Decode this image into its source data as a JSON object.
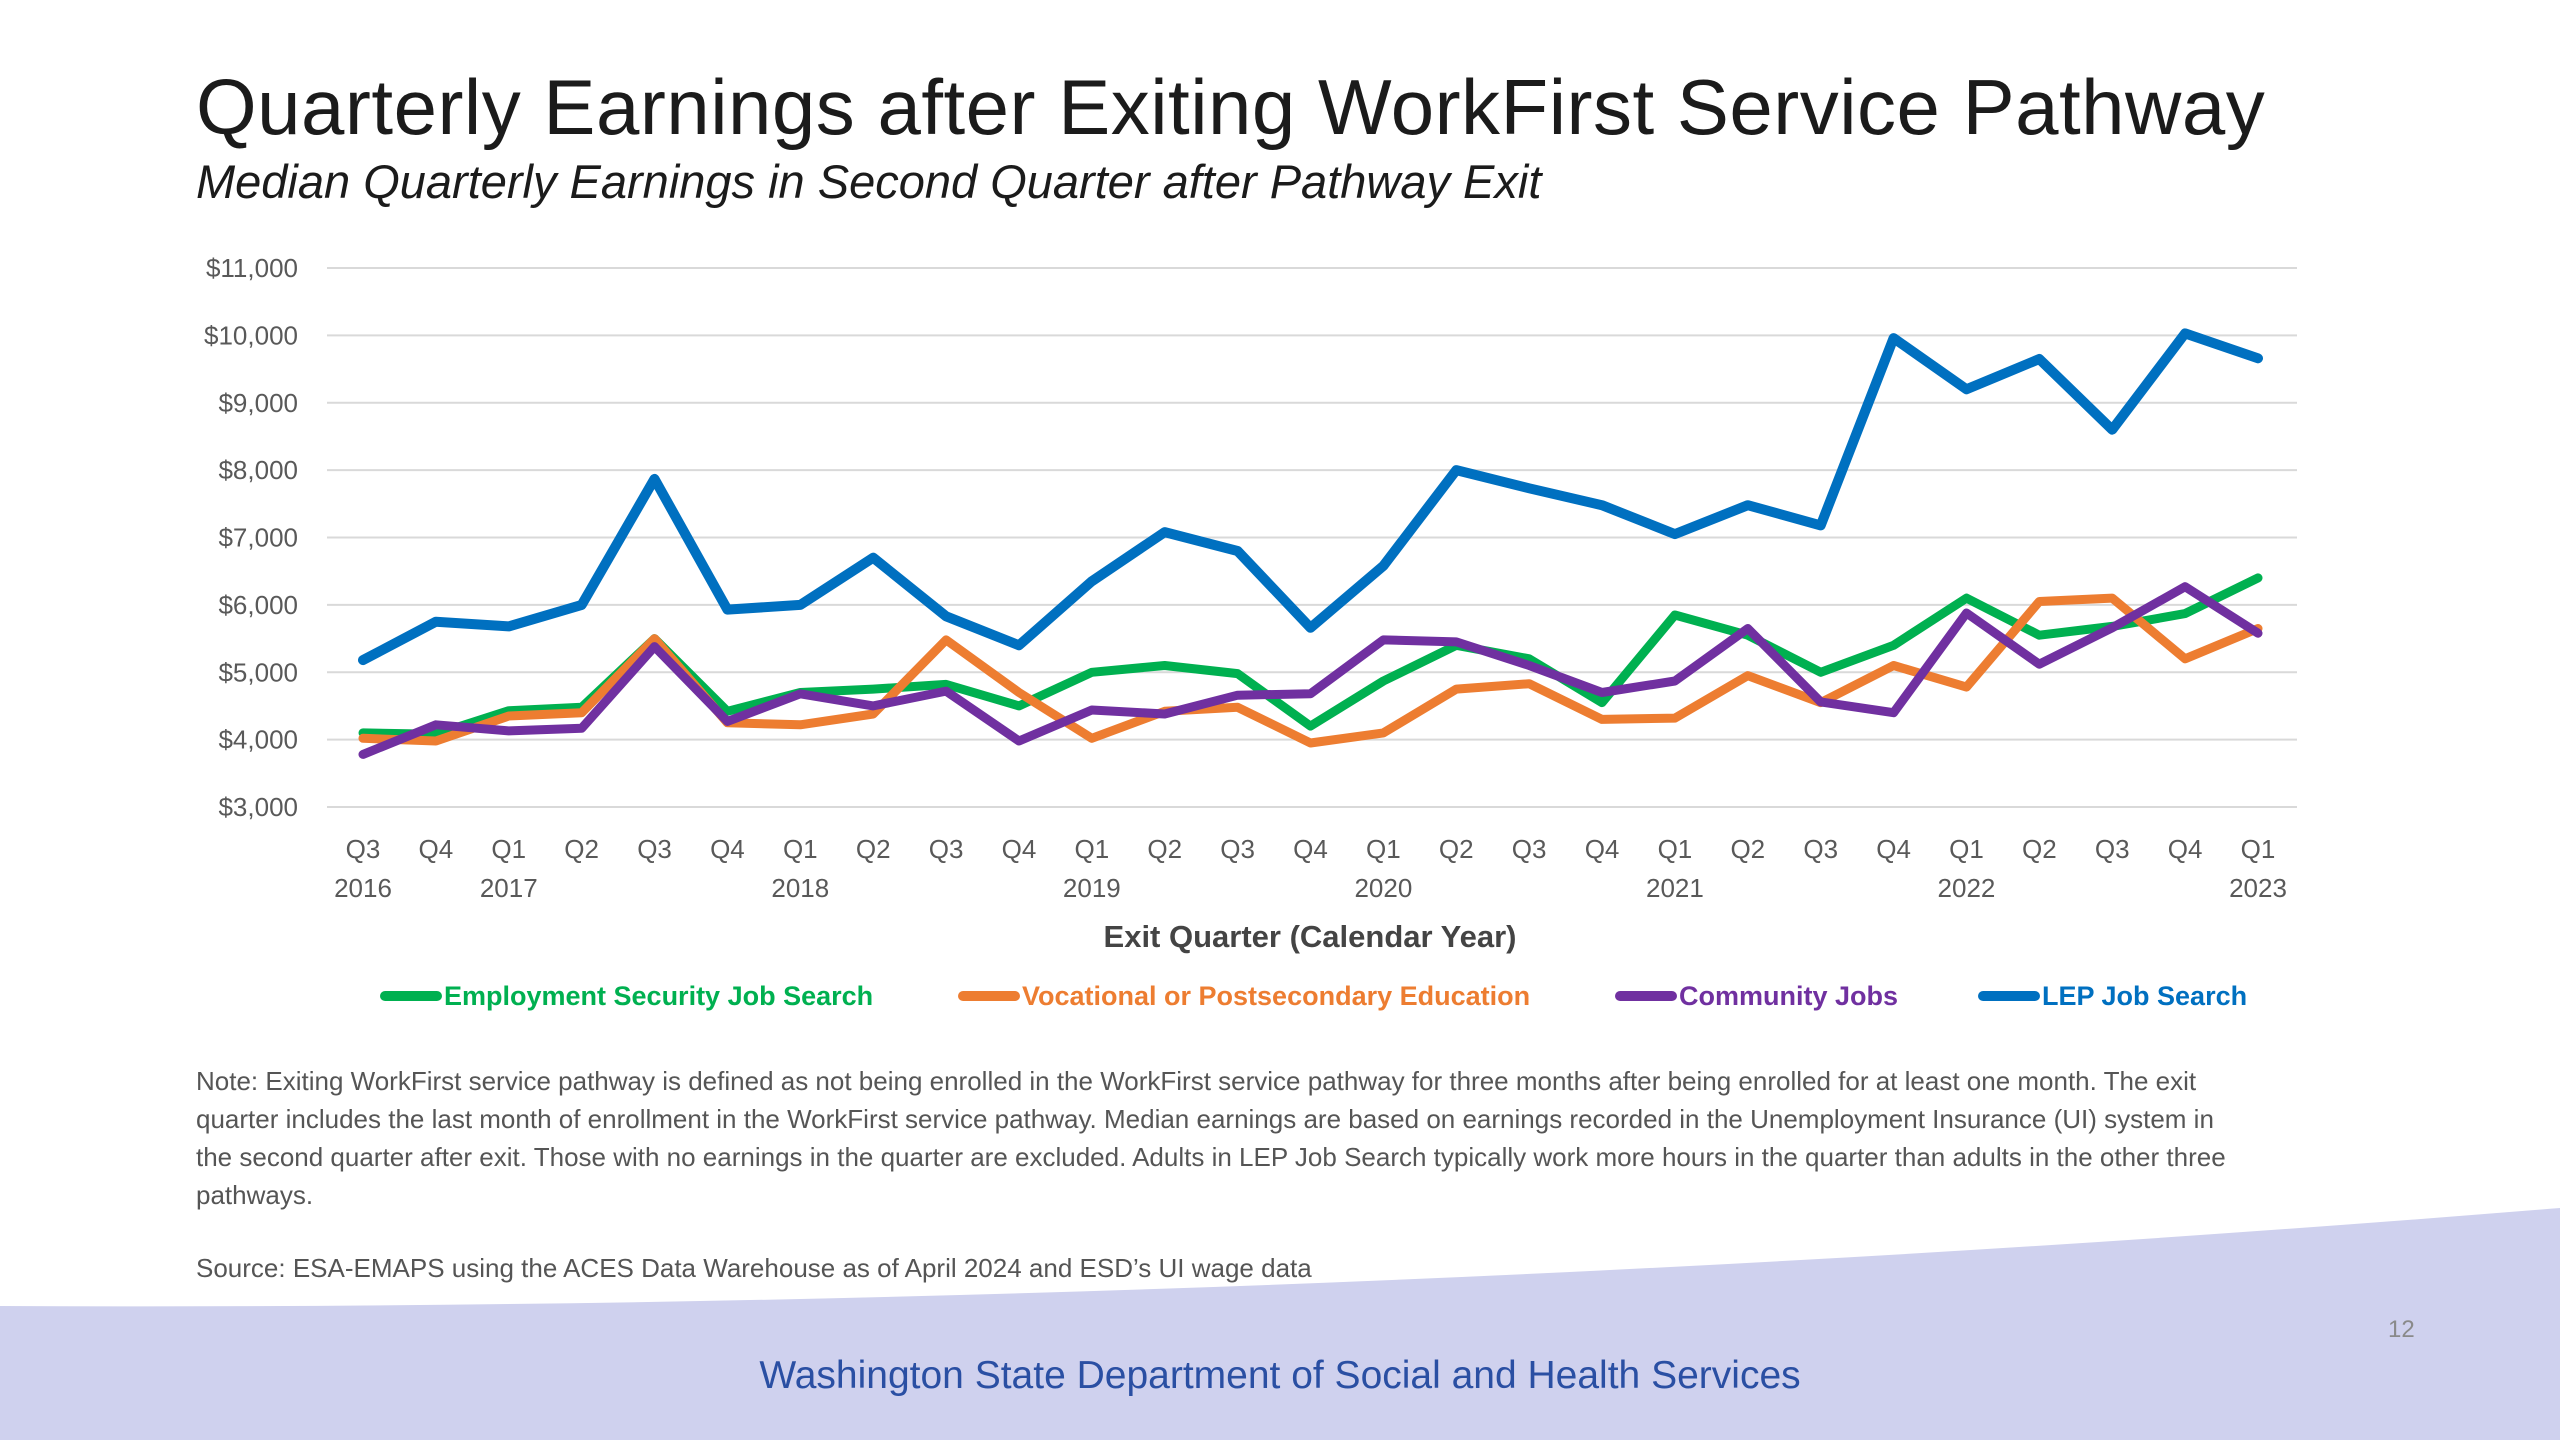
{
  "slide": {
    "title": "Quarterly Earnings after Exiting WorkFirst Service Pathway",
    "subtitle": "Median Quarterly Earnings in Second Quarter after Pathway Exit",
    "note": "Note: Exiting WorkFirst service pathway is defined as not being enrolled in the WorkFirst service pathway for three months after being enrolled for at least one month. The exit quarter includes the last month of enrollment in the WorkFirst service pathway. Median earnings are based on earnings recorded in the Unemployment Insurance (UI) system in the second quarter after exit. Those with no earnings in the quarter are excluded. Adults in LEP Job Search typically work more hours in the quarter than adults in the other three pathways.",
    "source": "Source: ESA-EMAPS using the ACES Data Warehouse as of April 2024 and ESD’s UI wage data",
    "page_number": "12",
    "footer_org": "Washington State Department of Social and Health Services",
    "footer_color": "#cfd1ee"
  },
  "chart_data": {
    "type": "line",
    "xlabel": "Exit Quarter (Calendar Year)",
    "ylabel": "",
    "ylim": [
      3000,
      11000
    ],
    "y_ticks": [
      3000,
      4000,
      5000,
      6000,
      7000,
      8000,
      9000,
      10000,
      11000
    ],
    "y_tick_labels": [
      "$3,000",
      "$4,000",
      "$5,000",
      "$6,000",
      "$7,000",
      "$8,000",
      "$9,000",
      "$10,000",
      "$11,000"
    ],
    "categories": [
      "Q3 2016",
      "Q4 2016",
      "Q1 2017",
      "Q2 2017",
      "Q3 2017",
      "Q4 2017",
      "Q1 2018",
      "Q2 2018",
      "Q3 2018",
      "Q4 2018",
      "Q1 2019",
      "Q2 2019",
      "Q3 2019",
      "Q4 2019",
      "Q1 2020",
      "Q2 2020",
      "Q3 2020",
      "Q4 2020",
      "Q1 2021",
      "Q2 2021",
      "Q3 2021",
      "Q4 2021",
      "Q1 2022",
      "Q2 2022",
      "Q3 2022",
      "Q4 2022",
      "Q1 2023"
    ],
    "quarter_labels": [
      "Q3",
      "Q4",
      "Q1",
      "Q2",
      "Q3",
      "Q4",
      "Q1",
      "Q2",
      "Q3",
      "Q4",
      "Q1",
      "Q2",
      "Q3",
      "Q4",
      "Q1",
      "Q2",
      "Q3",
      "Q4",
      "Q1",
      "Q2",
      "Q3",
      "Q4",
      "Q1",
      "Q2",
      "Q3",
      "Q4",
      "Q1"
    ],
    "year_labels": [
      "2016",
      "",
      "2017",
      "",
      "",
      "",
      "2018",
      "",
      "",
      "",
      "2019",
      "",
      "",
      "",
      "2020",
      "",
      "",
      "",
      "2021",
      "",
      "",
      "",
      "2022",
      "",
      "",
      "",
      "2023"
    ],
    "grid": true,
    "legend_position": "bottom",
    "series": [
      {
        "name": "Employment Security Job Search",
        "color": "#00b050",
        "values": [
          4100,
          4080,
          4430,
          4480,
          5500,
          4420,
          4700,
          4750,
          4820,
          4500,
          5000,
          5100,
          4980,
          4200,
          4870,
          5400,
          5200,
          4550,
          5850,
          5550,
          5000,
          5400,
          6100,
          5550,
          5680,
          5870,
          6400
        ]
      },
      {
        "name": "Vocational or Postsecondary Education",
        "color": "#ed7d31",
        "values": [
          4020,
          3980,
          4350,
          4400,
          5500,
          4250,
          4220,
          4380,
          5480,
          4700,
          4020,
          4420,
          4480,
          3950,
          4100,
          4750,
          4830,
          4300,
          4320,
          4950,
          4550,
          5100,
          4780,
          6050,
          6100,
          5200,
          5650
        ]
      },
      {
        "name": "Community Jobs",
        "color": "#7030a0",
        "values": [
          3780,
          4220,
          4130,
          4170,
          5380,
          4270,
          4680,
          4500,
          4720,
          3980,
          4440,
          4380,
          4660,
          4680,
          5480,
          5450,
          5100,
          4700,
          4870,
          5650,
          4560,
          4400,
          5880,
          5120,
          5660,
          6270,
          5580
        ]
      },
      {
        "name": "LEP Job Search",
        "color": "#0070c0",
        "values": [
          5180,
          5750,
          5680,
          6000,
          7870,
          5930,
          6000,
          6700,
          5830,
          5400,
          6350,
          7080,
          6800,
          5660,
          6580,
          8000,
          7730,
          7480,
          7050,
          7480,
          7180,
          9960,
          9200,
          9650,
          8600,
          10030,
          9660
        ]
      }
    ]
  }
}
